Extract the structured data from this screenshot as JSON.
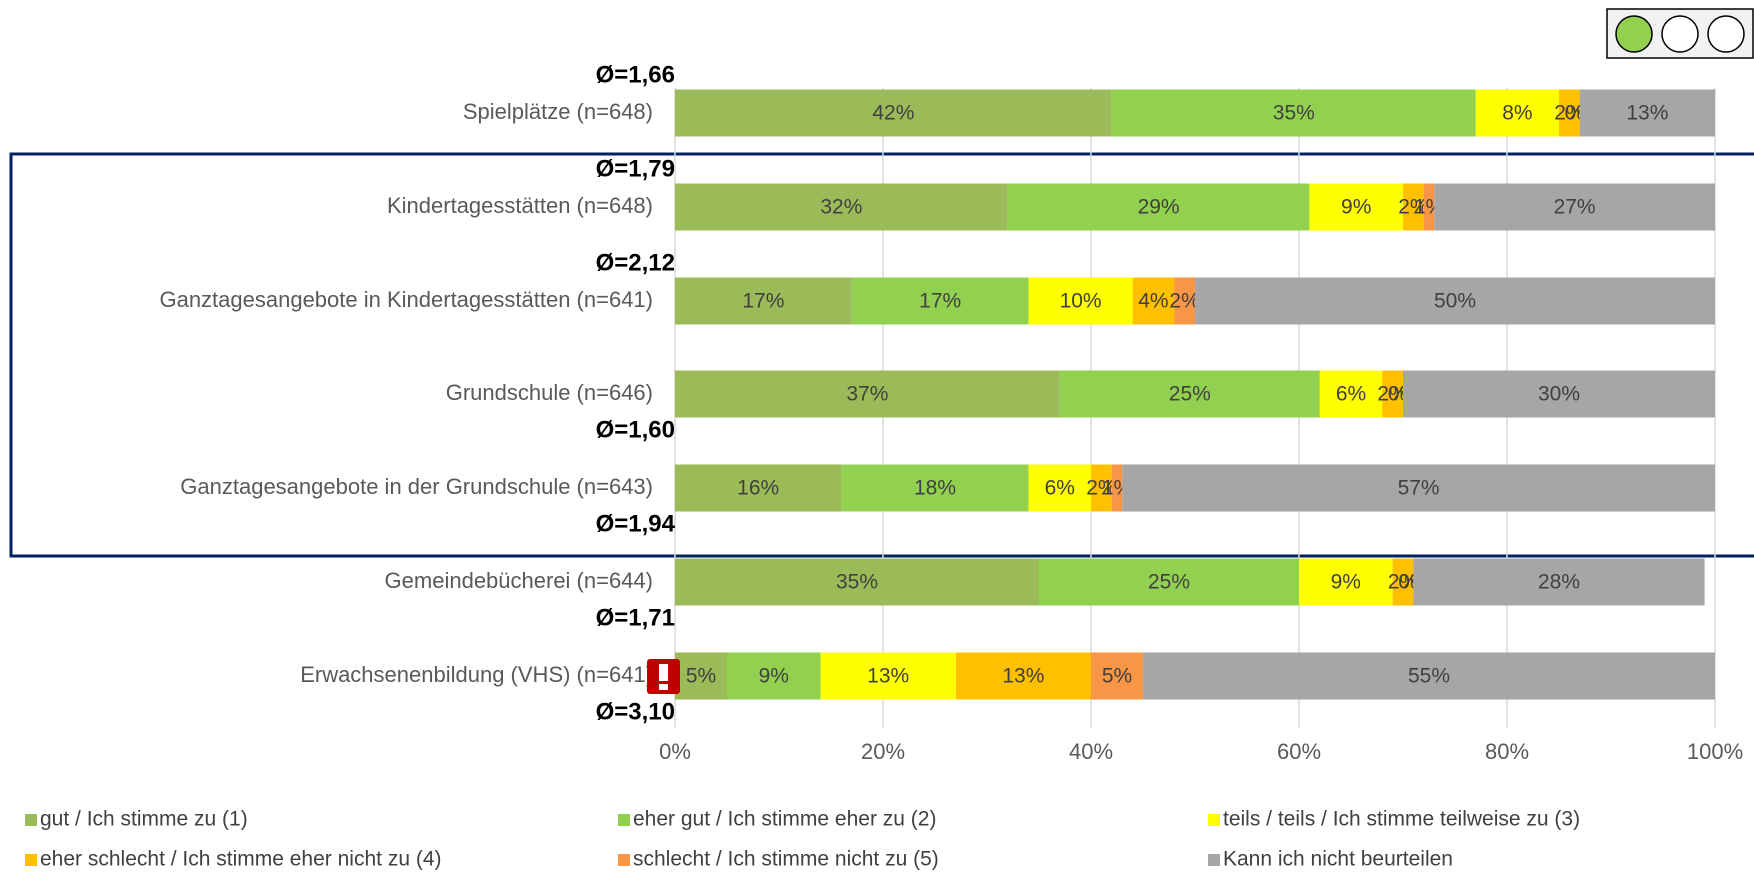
{
  "chart_data": {
    "type": "stacked-bar-horizontal",
    "categories": [
      "Spielplätze (n=648)",
      "Kindertagesstätten (n=648)",
      "Ganztagesangebote in Kindertagesstätten (n=641)",
      "Grundschule (n=646)",
      "Ganztagesangebote in der Grundschule (n=643)",
      "Gemeindebücherei (n=644)",
      "Erwachsenenbildung (VHS) (n=641)"
    ],
    "averages": [
      "Ø=1,66",
      "Ø=1,79",
      "Ø=2,12",
      "Ø=1,60",
      "Ø=1,94",
      "Ø=1,71",
      "Ø=3,10"
    ],
    "series": [
      {
        "name": "gut / Ich stimme zu (1)",
        "color": "#9bbb59",
        "values": [
          42,
          32,
          17,
          37,
          16,
          35,
          5
        ],
        "value_labels": [
          "42%",
          "32%",
          "17%",
          "37%",
          "16%",
          "35%",
          "5%"
        ]
      },
      {
        "name": "eher gut / Ich stimme eher zu (2)",
        "color": "#92d050",
        "values": [
          35,
          29,
          17,
          25,
          18,
          25,
          9
        ],
        "value_labels": [
          "35%",
          "29%",
          "17%",
          "25%",
          "18%",
          "25%",
          "9%"
        ]
      },
      {
        "name": "teils / teils / Ich stimme teilweise zu (3)",
        "color": "#ffff00",
        "values": [
          8,
          9,
          10,
          6,
          6,
          9,
          13
        ],
        "value_labels": [
          "8%",
          "9%",
          "10%",
          "6%",
          "6%",
          "9%",
          "13%"
        ]
      },
      {
        "name": "eher schlecht / Ich stimme eher nicht zu (4)",
        "color": "#ffc000",
        "values": [
          2,
          2,
          4,
          2,
          2,
          2,
          13
        ],
        "value_labels": [
          "2%",
          "2%",
          "4%",
          "2%",
          "2%",
          "2%",
          "13%"
        ]
      },
      {
        "name": "schlecht / Ich stimme nicht zu (5)",
        "color": "#f79646",
        "values": [
          0,
          1,
          2,
          0,
          1,
          0,
          5
        ],
        "value_labels": [
          "0%",
          "1%",
          "2%",
          "0%",
          "1%",
          "0%",
          "5%"
        ]
      },
      {
        "name": "Kann ich nicht beurteilen",
        "color": "#a6a6a6",
        "values": [
          13,
          27,
          50,
          30,
          57,
          28,
          55
        ],
        "value_labels": [
          "13%",
          "27%",
          "50%",
          "30%",
          "57%",
          "28%",
          "55%"
        ]
      }
    ],
    "xlim": [
      0,
      100
    ],
    "xticks": [
      {
        "value": 0,
        "label": "0%"
      },
      {
        "value": 20,
        "label": "20%"
      },
      {
        "value": 40,
        "label": "40%"
      },
      {
        "value": 60,
        "label": "60%"
      },
      {
        "value": 80,
        "label": "80%"
      },
      {
        "value": 100,
        "label": "100%"
      }
    ],
    "grid": true
  }
}
